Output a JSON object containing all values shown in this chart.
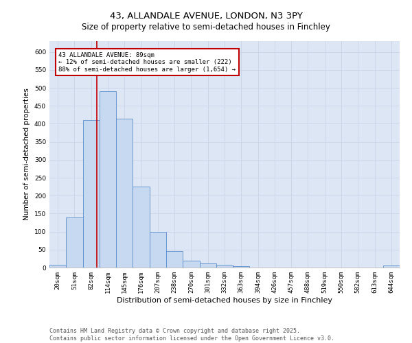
{
  "title_line1": "43, ALLANDALE AVENUE, LONDON, N3 3PY",
  "title_line2": "Size of property relative to semi-detached houses in Finchley",
  "xlabel": "Distribution of semi-detached houses by size in Finchley",
  "ylabel": "Number of semi-detached properties",
  "categories": [
    "20sqm",
    "51sqm",
    "82sqm",
    "114sqm",
    "145sqm",
    "176sqm",
    "207sqm",
    "238sqm",
    "270sqm",
    "301sqm",
    "332sqm",
    "363sqm",
    "394sqm",
    "426sqm",
    "457sqm",
    "488sqm",
    "519sqm",
    "550sqm",
    "582sqm",
    "613sqm",
    "644sqm"
  ],
  "values": [
    8,
    140,
    410,
    490,
    415,
    225,
    100,
    45,
    20,
    12,
    7,
    4,
    0,
    0,
    0,
    0,
    0,
    0,
    0,
    0,
    5
  ],
  "bar_color": "#c6d9f0",
  "bar_edge_color": "#5b8cc8",
  "vline_x_index": 2.35,
  "vline_color": "#c00000",
  "annotation_title": "43 ALLANDALE AVENUE: 89sqm",
  "annotation_line2": "← 12% of semi-detached houses are smaller (222)",
  "annotation_line3": "88% of semi-detached houses are larger (1,654) →",
  "annotation_box_color": "#c00000",
  "ylim": [
    0,
    630
  ],
  "yticks": [
    0,
    50,
    100,
    150,
    200,
    250,
    300,
    350,
    400,
    450,
    500,
    550,
    600
  ],
  "grid_color": "#c8d4e8",
  "background_color": "#dce6f4",
  "footer_line1": "Contains HM Land Registry data © Crown copyright and database right 2025.",
  "footer_line2": "Contains public sector information licensed under the Open Government Licence v3.0.",
  "title_fontsize": 9.5,
  "subtitle_fontsize": 8.5,
  "tick_fontsize": 6.5,
  "xlabel_fontsize": 8,
  "ylabel_fontsize": 7.5,
  "footer_fontsize": 6,
  "annotation_fontsize": 6.5
}
